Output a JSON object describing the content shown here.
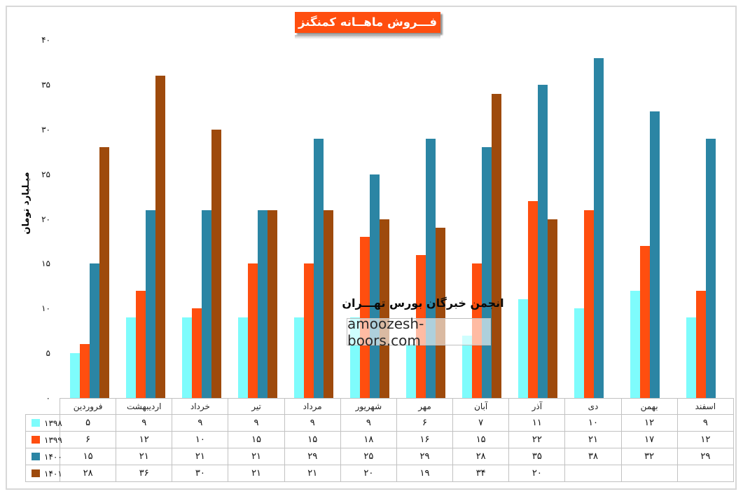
{
  "title": "فـــروش ماهــانه کمنگنز",
  "colors": {
    "title_bg": "#FF4E0F",
    "series_1398": "#7EFCFC",
    "series_1399": "#FF4E0F",
    "series_1400": "#2B85A4",
    "series_1401": "#9E4A0C",
    "table_border": "#c2c2c2"
  },
  "y_axis": {
    "label": "میـلیارد تومان",
    "ticks": [
      {
        "value": 40,
        "label": "۴۰"
      },
      {
        "value": 35,
        "label": "۳۵"
      },
      {
        "value": 30,
        "label": "۳۰"
      },
      {
        "value": 25,
        "label": "۲۵"
      },
      {
        "value": 20,
        "label": "۲۰"
      },
      {
        "value": 15,
        "label": "۱۵"
      },
      {
        "value": 10,
        "label": "۱۰"
      },
      {
        "value": 5,
        "label": "۵"
      },
      {
        "value": 0,
        "label": "۰"
      }
    ]
  },
  "watermark": {
    "line1": "انجمن خبرگان بورس تهـــران",
    "line2": "amoozesh-boors.com"
  },
  "chart_data": {
    "type": "bar",
    "title": "فـــروش ماهــانه کمنگنز",
    "xlabel": "",
    "ylabel": "میـلیارد تومان",
    "ylim": [
      0,
      40
    ],
    "grid": false,
    "legend_position": "table-left",
    "categories": [
      "فروردین",
      "اردیبهشت",
      "خرداد",
      "تیر",
      "مرداد",
      "شهریور",
      "مهر",
      "آبان",
      "آذر",
      "دی",
      "بهمن",
      "اسفند"
    ],
    "series": [
      {
        "name": "۱۳۹۸",
        "color": "#7EFCFC",
        "values": [
          5,
          9,
          9,
          9,
          9,
          9,
          6,
          7,
          11,
          10,
          12,
          9
        ],
        "labels": [
          "۵",
          "۹",
          "۹",
          "۹",
          "۹",
          "۹",
          "۶",
          "۷",
          "۱۱",
          "۱۰",
          "۱۲",
          "۹"
        ]
      },
      {
        "name": "۱۳۹۹",
        "color": "#FF4E0F",
        "values": [
          6,
          12,
          10,
          15,
          15,
          18,
          16,
          15,
          22,
          21,
          17,
          12
        ],
        "labels": [
          "۶",
          "۱۲",
          "۱۰",
          "۱۵",
          "۱۵",
          "۱۸",
          "۱۶",
          "۱۵",
          "۲۲",
          "۲۱",
          "۱۷",
          "۱۲"
        ]
      },
      {
        "name": "۱۴۰۰",
        "color": "#2B85A4",
        "values": [
          15,
          21,
          21,
          21,
          29,
          25,
          29,
          28,
          35,
          38,
          32,
          29
        ],
        "labels": [
          "۱۵",
          "۲۱",
          "۲۱",
          "۲۱",
          "۲۹",
          "۲۵",
          "۲۹",
          "۲۸",
          "۳۵",
          "۳۸",
          "۳۲",
          "۲۹"
        ]
      },
      {
        "name": "۱۴۰۱",
        "color": "#9E4A0C",
        "values": [
          28,
          36,
          30,
          21,
          21,
          20,
          19,
          34,
          20,
          null,
          null,
          null
        ],
        "labels": [
          "۲۸",
          "۳۶",
          "۳۰",
          "۲۱",
          "۲۱",
          "۲۰",
          "۱۹",
          "۳۴",
          "۲۰",
          "",
          "",
          ""
        ]
      }
    ]
  }
}
